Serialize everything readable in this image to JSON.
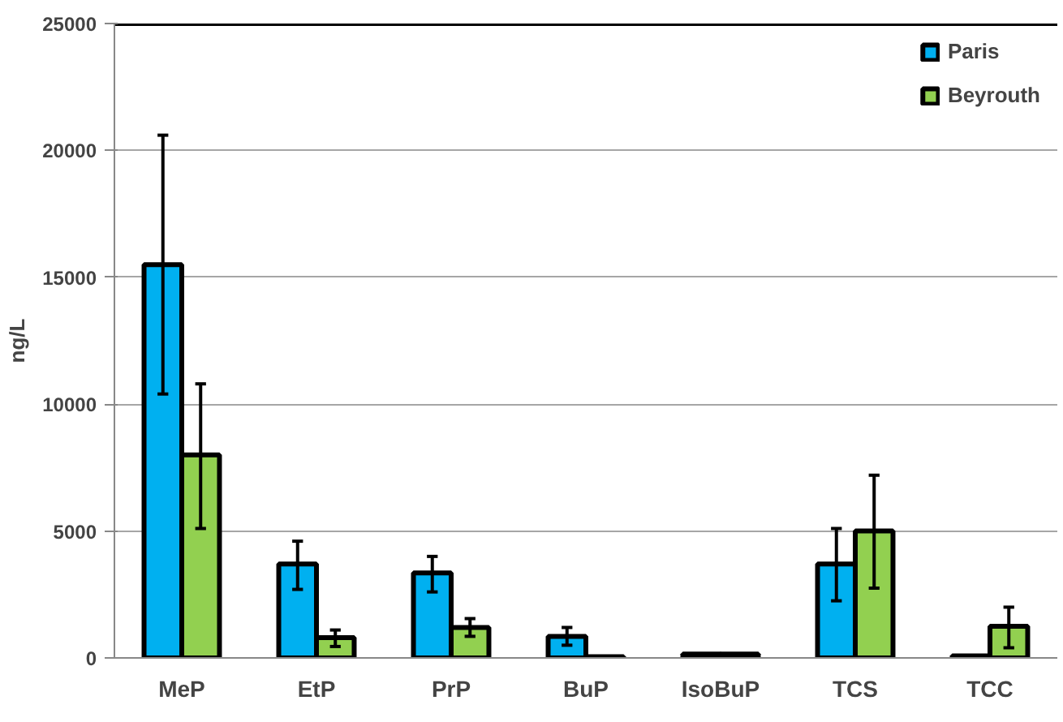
{
  "chart_data": {
    "type": "bar",
    "ylabel": "ng/L",
    "categories": [
      "MeP",
      "EtP",
      "PrP",
      "BuP",
      "IsoBuP",
      "TCS",
      "TCC"
    ],
    "series": [
      {
        "name": "Paris",
        "color": "#00b0f0",
        "values": [
          15500,
          3700,
          3350,
          850,
          150,
          3700,
          80
        ],
        "errors": [
          [
            10400,
            20600
          ],
          [
            2700,
            4600
          ],
          [
            2600,
            4000
          ],
          [
            500,
            1200
          ],
          null,
          [
            2250,
            5100
          ],
          null
        ]
      },
      {
        "name": "Beyrouth",
        "color": "#92d050",
        "values": [
          8000,
          800,
          1200,
          50,
          150,
          5000,
          1250
        ],
        "errors": [
          [
            5100,
            10800
          ],
          [
            450,
            1100
          ],
          [
            850,
            1550
          ],
          null,
          null,
          [
            2750,
            7200
          ],
          [
            400,
            2000
          ]
        ]
      }
    ],
    "ylim": [
      0,
      25000
    ],
    "yticks": [
      0,
      5000,
      10000,
      15000,
      20000,
      25000
    ],
    "grid": "y",
    "legend": "top right"
  }
}
